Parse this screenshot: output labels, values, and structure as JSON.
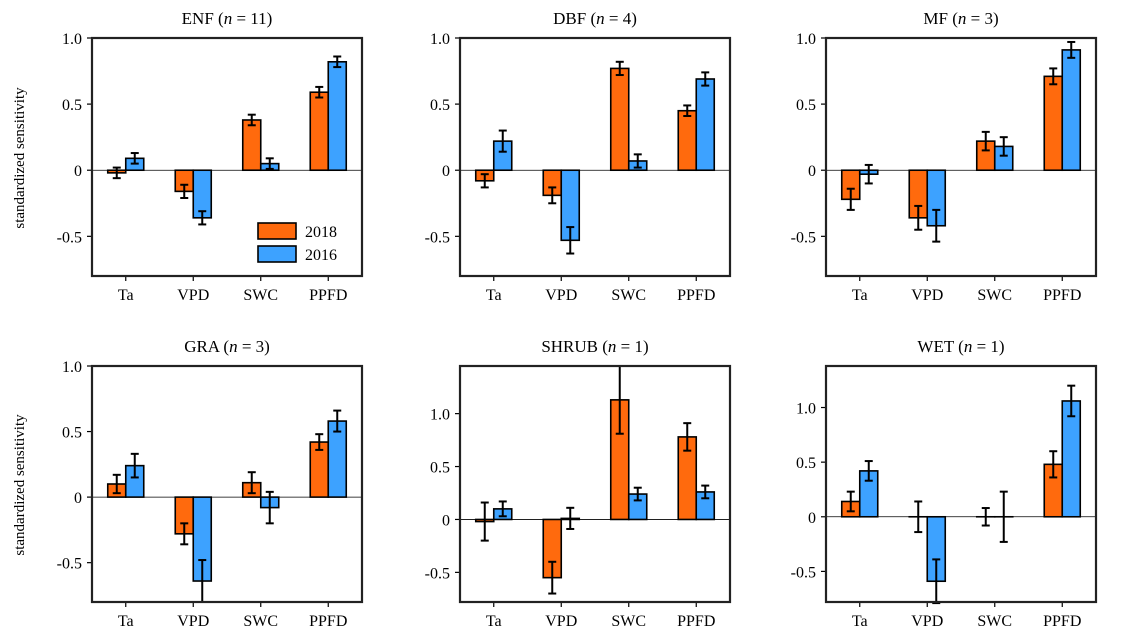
{
  "legend": {
    "items": [
      {
        "label": "2018",
        "color": "#ff6a0d"
      },
      {
        "label": "2016",
        "color": "#3da2ff"
      }
    ]
  },
  "ylabel": "standardized sensitivity",
  "colors": {
    "series_2018": "#ff6a0d",
    "series_2016": "#3da2ff",
    "axis": "#222222"
  },
  "chart_data": [
    {
      "type": "bar",
      "title": "ENF (n = 11)",
      "title_prefix": "ENF (",
      "title_n": "n",
      "title_suffix": " = 11)",
      "categories": [
        "Ta",
        "VPD",
        "SWC",
        "PPFD"
      ],
      "ylim": [
        -0.8,
        1.0
      ],
      "yticks": [
        -0.5,
        0,
        0.5,
        1.0
      ],
      "ytick_labels": [
        "-0.5",
        "0",
        "0.5",
        "1.0"
      ],
      "series": [
        {
          "name": "2018",
          "values": [
            -0.02,
            -0.16,
            0.38,
            0.59
          ],
          "errors": [
            0.04,
            0.05,
            0.04,
            0.04
          ]
        },
        {
          "name": "2016",
          "values": [
            0.09,
            -0.36,
            0.05,
            0.82
          ],
          "errors": [
            0.04,
            0.05,
            0.04,
            0.04
          ]
        }
      ]
    },
    {
      "type": "bar",
      "title": "DBF (n = 4)",
      "title_prefix": "DBF (",
      "title_n": "n",
      "title_suffix": " = 4)",
      "categories": [
        "Ta",
        "VPD",
        "SWC",
        "PPFD"
      ],
      "ylim": [
        -0.8,
        1.0
      ],
      "yticks": [
        -0.5,
        0,
        0.5,
        1.0
      ],
      "ytick_labels": [
        "-0.5",
        "0",
        "0.5",
        "1.0"
      ],
      "series": [
        {
          "name": "2018",
          "values": [
            -0.08,
            -0.19,
            0.77,
            0.45
          ],
          "errors": [
            0.05,
            0.06,
            0.05,
            0.04
          ]
        },
        {
          "name": "2016",
          "values": [
            0.22,
            -0.53,
            0.07,
            0.69
          ],
          "errors": [
            0.08,
            0.1,
            0.05,
            0.05
          ]
        }
      ]
    },
    {
      "type": "bar",
      "title": "MF (n = 3)",
      "title_prefix": "MF (",
      "title_n": "n",
      "title_suffix": " = 3)",
      "categories": [
        "Ta",
        "VPD",
        "SWC",
        "PPFD"
      ],
      "ylim": [
        -0.8,
        1.0
      ],
      "yticks": [
        -0.5,
        0,
        0.5,
        1.0
      ],
      "ytick_labels": [
        "-0.5",
        "0",
        "0.5",
        "1.0"
      ],
      "series": [
        {
          "name": "2018",
          "values": [
            -0.22,
            -0.36,
            0.22,
            0.71
          ],
          "errors": [
            0.08,
            0.09,
            0.07,
            0.06
          ]
        },
        {
          "name": "2016",
          "values": [
            -0.03,
            -0.42,
            0.18,
            0.91
          ],
          "errors": [
            0.07,
            0.12,
            0.07,
            0.06
          ]
        }
      ]
    },
    {
      "type": "bar",
      "title": "GRA (n = 3)",
      "title_prefix": "GRA (",
      "title_n": "n",
      "title_suffix": " = 3)",
      "categories": [
        "Ta",
        "VPD",
        "SWC",
        "PPFD"
      ],
      "ylim": [
        -0.8,
        1.0
      ],
      "yticks": [
        -0.5,
        0,
        0.5,
        1.0
      ],
      "ytick_labels": [
        "-0.5",
        "0",
        "0.5",
        "1.0"
      ],
      "series": [
        {
          "name": "2018",
          "values": [
            0.1,
            -0.28,
            0.11,
            0.42
          ],
          "errors": [
            0.07,
            0.08,
            0.08,
            0.06
          ]
        },
        {
          "name": "2016",
          "values": [
            0.24,
            -0.64,
            -0.08,
            0.58
          ],
          "errors": [
            0.09,
            0.16,
            0.12,
            0.08
          ]
        }
      ]
    },
    {
      "type": "bar",
      "title": "SHRUB (n = 1)",
      "title_prefix": "SHRUB (",
      "title_n": "n",
      "title_suffix": " = 1)",
      "categories": [
        "Ta",
        "VPD",
        "SWC",
        "PPFD"
      ],
      "ylim": [
        -0.78,
        1.45
      ],
      "yticks": [
        -0.5,
        0,
        0.5,
        1.0
      ],
      "ytick_labels": [
        "-0.5",
        "0",
        "0.5",
        "1.0"
      ],
      "series": [
        {
          "name": "2018",
          "values": [
            -0.02,
            -0.55,
            1.13,
            0.78
          ],
          "errors": [
            0.18,
            0.15,
            0.32,
            0.13
          ]
        },
        {
          "name": "2016",
          "values": [
            0.1,
            0.01,
            0.24,
            0.26
          ],
          "errors": [
            0.07,
            0.1,
            0.06,
            0.06
          ]
        }
      ]
    },
    {
      "type": "bar",
      "title": "WET (n = 1)",
      "title_prefix": "WET (",
      "title_n": "n",
      "title_suffix": " = 1)",
      "categories": [
        "Ta",
        "VPD",
        "SWC",
        "PPFD"
      ],
      "ylim": [
        -0.78,
        1.38
      ],
      "yticks": [
        -0.5,
        0,
        0.5,
        1.0
      ],
      "ytick_labels": [
        "-0.5",
        "0",
        "0.5",
        "1.0"
      ],
      "series": [
        {
          "name": "2018",
          "values": [
            0.14,
            0.0,
            0.0,
            0.48
          ],
          "errors": [
            0.09,
            0.14,
            0.08,
            0.12
          ]
        },
        {
          "name": "2016",
          "values": [
            0.42,
            -0.59,
            0.0,
            1.06
          ],
          "errors": [
            0.09,
            0.2,
            0.23,
            0.14
          ]
        }
      ]
    }
  ]
}
